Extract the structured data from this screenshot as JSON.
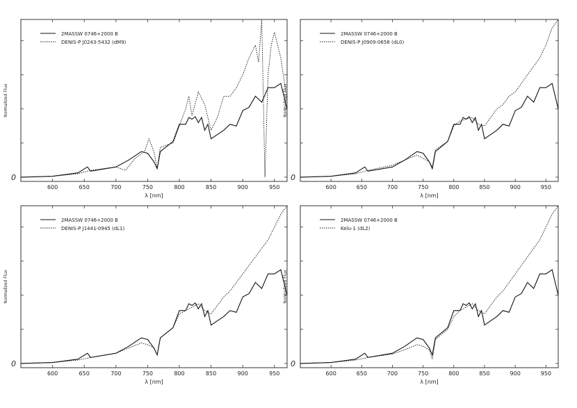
{
  "figure": {
    "panel_count": 4
  },
  "chart_data": [
    {
      "type": "line",
      "xlabel": "λ [nm]",
      "ylabel": "Normalized Flux",
      "xlim": [
        550,
        970
      ],
      "ylim": [
        -0.05,
        1.85
      ],
      "x_ticks": [
        600,
        650,
        700,
        750,
        800,
        850,
        900,
        950
      ],
      "x_tick_labels": [
        "600",
        "650",
        "700",
        "750",
        "800",
        "850",
        "900",
        "950"
      ],
      "y_zero_label": "0",
      "legend_position": "top-left",
      "series": [
        {
          "name": "2MASSW 0746+2000 B",
          "style": "solid",
          "x": [
            550,
            600,
            640,
            655,
            660,
            700,
            720,
            740,
            750,
            760,
            765,
            770,
            790,
            800,
            810,
            815,
            820,
            825,
            830,
            835,
            840,
            845,
            850,
            860,
            870,
            880,
            890,
            900,
            910,
            920,
            930,
            940,
            950,
            960,
            970
          ],
          "y": [
            0.0,
            0.01,
            0.05,
            0.12,
            0.07,
            0.12,
            0.2,
            0.3,
            0.28,
            0.18,
            0.1,
            0.3,
            0.42,
            0.62,
            0.62,
            0.7,
            0.68,
            0.71,
            0.64,
            0.7,
            0.55,
            0.62,
            0.45,
            0.5,
            0.55,
            0.62,
            0.6,
            0.78,
            0.82,
            0.95,
            0.88,
            1.05,
            1.05,
            1.1,
            0.8
          ]
        },
        {
          "name": "DENIS-P J0243-5432 (dM9)",
          "style": "dotted",
          "x": [
            550,
            600,
            640,
            660,
            700,
            715,
            730,
            745,
            752,
            760,
            765,
            770,
            790,
            800,
            810,
            815,
            820,
            830,
            840,
            850,
            860,
            870,
            880,
            890,
            900,
            910,
            920,
            925,
            930,
            935,
            940,
            945,
            950,
            960,
            970
          ],
          "y": [
            0.0,
            0.01,
            0.04,
            0.08,
            0.12,
            0.08,
            0.22,
            0.3,
            0.45,
            0.3,
            0.1,
            0.35,
            0.4,
            0.6,
            0.8,
            0.95,
            0.72,
            1.0,
            0.85,
            0.55,
            0.7,
            0.95,
            0.95,
            1.05,
            1.2,
            1.4,
            1.55,
            1.35,
            1.85,
            0.0,
            1.2,
            1.55,
            1.7,
            1.4,
            0.9
          ]
        }
      ]
    },
    {
      "type": "line",
      "xlabel": "λ [nm]",
      "ylabel": "Normalized Flux",
      "xlim": [
        550,
        970
      ],
      "ylim": [
        -0.05,
        1.85
      ],
      "x_ticks": [
        600,
        650,
        700,
        750,
        800,
        850,
        900,
        950
      ],
      "x_tick_labels": [
        "600",
        "650",
        "700",
        "750",
        "800",
        "850",
        "900",
        "950"
      ],
      "y_zero_label": "0",
      "legend_position": "top-left",
      "series": [
        {
          "name": "2MASSW 0746+2000 B",
          "style": "solid",
          "x": [
            550,
            600,
            640,
            655,
            660,
            700,
            720,
            740,
            750,
            760,
            765,
            770,
            790,
            800,
            810,
            815,
            820,
            825,
            830,
            835,
            840,
            845,
            850,
            860,
            870,
            880,
            890,
            900,
            910,
            920,
            930,
            940,
            950,
            960,
            970
          ],
          "y": [
            0.0,
            0.01,
            0.05,
            0.12,
            0.07,
            0.12,
            0.2,
            0.3,
            0.28,
            0.18,
            0.1,
            0.3,
            0.42,
            0.62,
            0.62,
            0.7,
            0.68,
            0.71,
            0.64,
            0.7,
            0.55,
            0.62,
            0.45,
            0.5,
            0.55,
            0.62,
            0.6,
            0.78,
            0.82,
            0.95,
            0.88,
            1.05,
            1.05,
            1.1,
            0.8
          ]
        },
        {
          "name": "DENIS-P J0909-0658 (dL0)",
          "style": "dotted",
          "x": [
            550,
            600,
            640,
            660,
            700,
            720,
            740,
            750,
            760,
            765,
            770,
            790,
            800,
            810,
            820,
            830,
            840,
            850,
            860,
            870,
            880,
            890,
            900,
            910,
            920,
            930,
            940,
            950,
            960,
            970
          ],
          "y": [
            0.0,
            0.01,
            0.04,
            0.08,
            0.14,
            0.2,
            0.26,
            0.22,
            0.18,
            0.12,
            0.32,
            0.42,
            0.6,
            0.66,
            0.68,
            0.7,
            0.62,
            0.6,
            0.7,
            0.8,
            0.85,
            0.95,
            1.0,
            1.1,
            1.2,
            1.3,
            1.4,
            1.55,
            1.75,
            1.85
          ]
        }
      ]
    },
    {
      "type": "line",
      "xlabel": "λ [nm]",
      "ylabel": "Normalized Flux",
      "xlim": [
        550,
        970
      ],
      "ylim": [
        -0.05,
        1.85
      ],
      "x_ticks": [
        600,
        650,
        700,
        750,
        800,
        850,
        900,
        950
      ],
      "x_tick_labels": [
        "600",
        "650",
        "700",
        "750",
        "800",
        "850",
        "900",
        "950"
      ],
      "y_zero_label": "0",
      "legend_position": "top-left",
      "series": [
        {
          "name": "2MASSW 0746+2000 B",
          "style": "solid",
          "x": [
            550,
            600,
            640,
            655,
            660,
            700,
            720,
            740,
            750,
            760,
            765,
            770,
            790,
            800,
            810,
            815,
            820,
            825,
            830,
            835,
            840,
            845,
            850,
            860,
            870,
            880,
            890,
            900,
            910,
            920,
            930,
            940,
            950,
            960,
            970
          ],
          "y": [
            0.0,
            0.01,
            0.05,
            0.12,
            0.07,
            0.12,
            0.2,
            0.3,
            0.28,
            0.18,
            0.1,
            0.3,
            0.42,
            0.62,
            0.62,
            0.7,
            0.68,
            0.71,
            0.64,
            0.7,
            0.55,
            0.62,
            0.45,
            0.5,
            0.55,
            0.62,
            0.6,
            0.78,
            0.82,
            0.95,
            0.88,
            1.05,
            1.05,
            1.1,
            0.8
          ]
        },
        {
          "name": "DENIS-P J1441-0945 (dL1)",
          "style": "dotted",
          "x": [
            550,
            600,
            640,
            660,
            700,
            720,
            740,
            750,
            760,
            765,
            770,
            790,
            800,
            810,
            820,
            830,
            840,
            850,
            860,
            870,
            880,
            890,
            900,
            910,
            920,
            930,
            940,
            950,
            960,
            970
          ],
          "y": [
            0.0,
            0.01,
            0.04,
            0.07,
            0.12,
            0.18,
            0.24,
            0.22,
            0.18,
            0.1,
            0.3,
            0.42,
            0.58,
            0.62,
            0.66,
            0.7,
            0.62,
            0.58,
            0.68,
            0.78,
            0.85,
            0.95,
            1.05,
            1.15,
            1.25,
            1.35,
            1.45,
            1.6,
            1.75,
            1.85
          ]
        }
      ]
    },
    {
      "type": "line",
      "xlabel": "λ [nm]",
      "ylabel": "Normalized Flux",
      "xlim": [
        550,
        970
      ],
      "ylim": [
        -0.05,
        1.85
      ],
      "x_ticks": [
        600,
        650,
        700,
        750,
        800,
        850,
        900,
        950
      ],
      "x_tick_labels": [
        "600",
        "650",
        "700",
        "750",
        "800",
        "850",
        "900",
        "950"
      ],
      "y_zero_label": "0",
      "legend_position": "top-left",
      "series": [
        {
          "name": "2MASSW 0746+2000 B",
          "style": "solid",
          "x": [
            550,
            600,
            640,
            655,
            660,
            700,
            720,
            740,
            750,
            760,
            765,
            770,
            790,
            800,
            810,
            815,
            820,
            825,
            830,
            835,
            840,
            845,
            850,
            860,
            870,
            880,
            890,
            900,
            910,
            920,
            930,
            940,
            950,
            960,
            970
          ],
          "y": [
            0.0,
            0.01,
            0.05,
            0.12,
            0.07,
            0.12,
            0.2,
            0.3,
            0.28,
            0.18,
            0.1,
            0.3,
            0.42,
            0.62,
            0.62,
            0.7,
            0.68,
            0.71,
            0.64,
            0.7,
            0.55,
            0.62,
            0.45,
            0.5,
            0.55,
            0.62,
            0.6,
            0.78,
            0.82,
            0.95,
            0.88,
            1.05,
            1.05,
            1.1,
            0.8
          ]
        },
        {
          "name": "Kelu-1 (dL2)",
          "style": "dotted",
          "x": [
            550,
            600,
            640,
            660,
            700,
            720,
            740,
            750,
            760,
            765,
            770,
            790,
            800,
            810,
            820,
            830,
            840,
            850,
            860,
            870,
            880,
            890,
            900,
            910,
            920,
            930,
            940,
            950,
            960,
            970
          ],
          "y": [
            0.0,
            0.01,
            0.04,
            0.07,
            0.11,
            0.16,
            0.22,
            0.2,
            0.16,
            0.05,
            0.28,
            0.4,
            0.55,
            0.62,
            0.66,
            0.7,
            0.62,
            0.58,
            0.68,
            0.78,
            0.85,
            0.95,
            1.05,
            1.15,
            1.25,
            1.35,
            1.45,
            1.6,
            1.75,
            1.85
          ]
        }
      ]
    }
  ]
}
